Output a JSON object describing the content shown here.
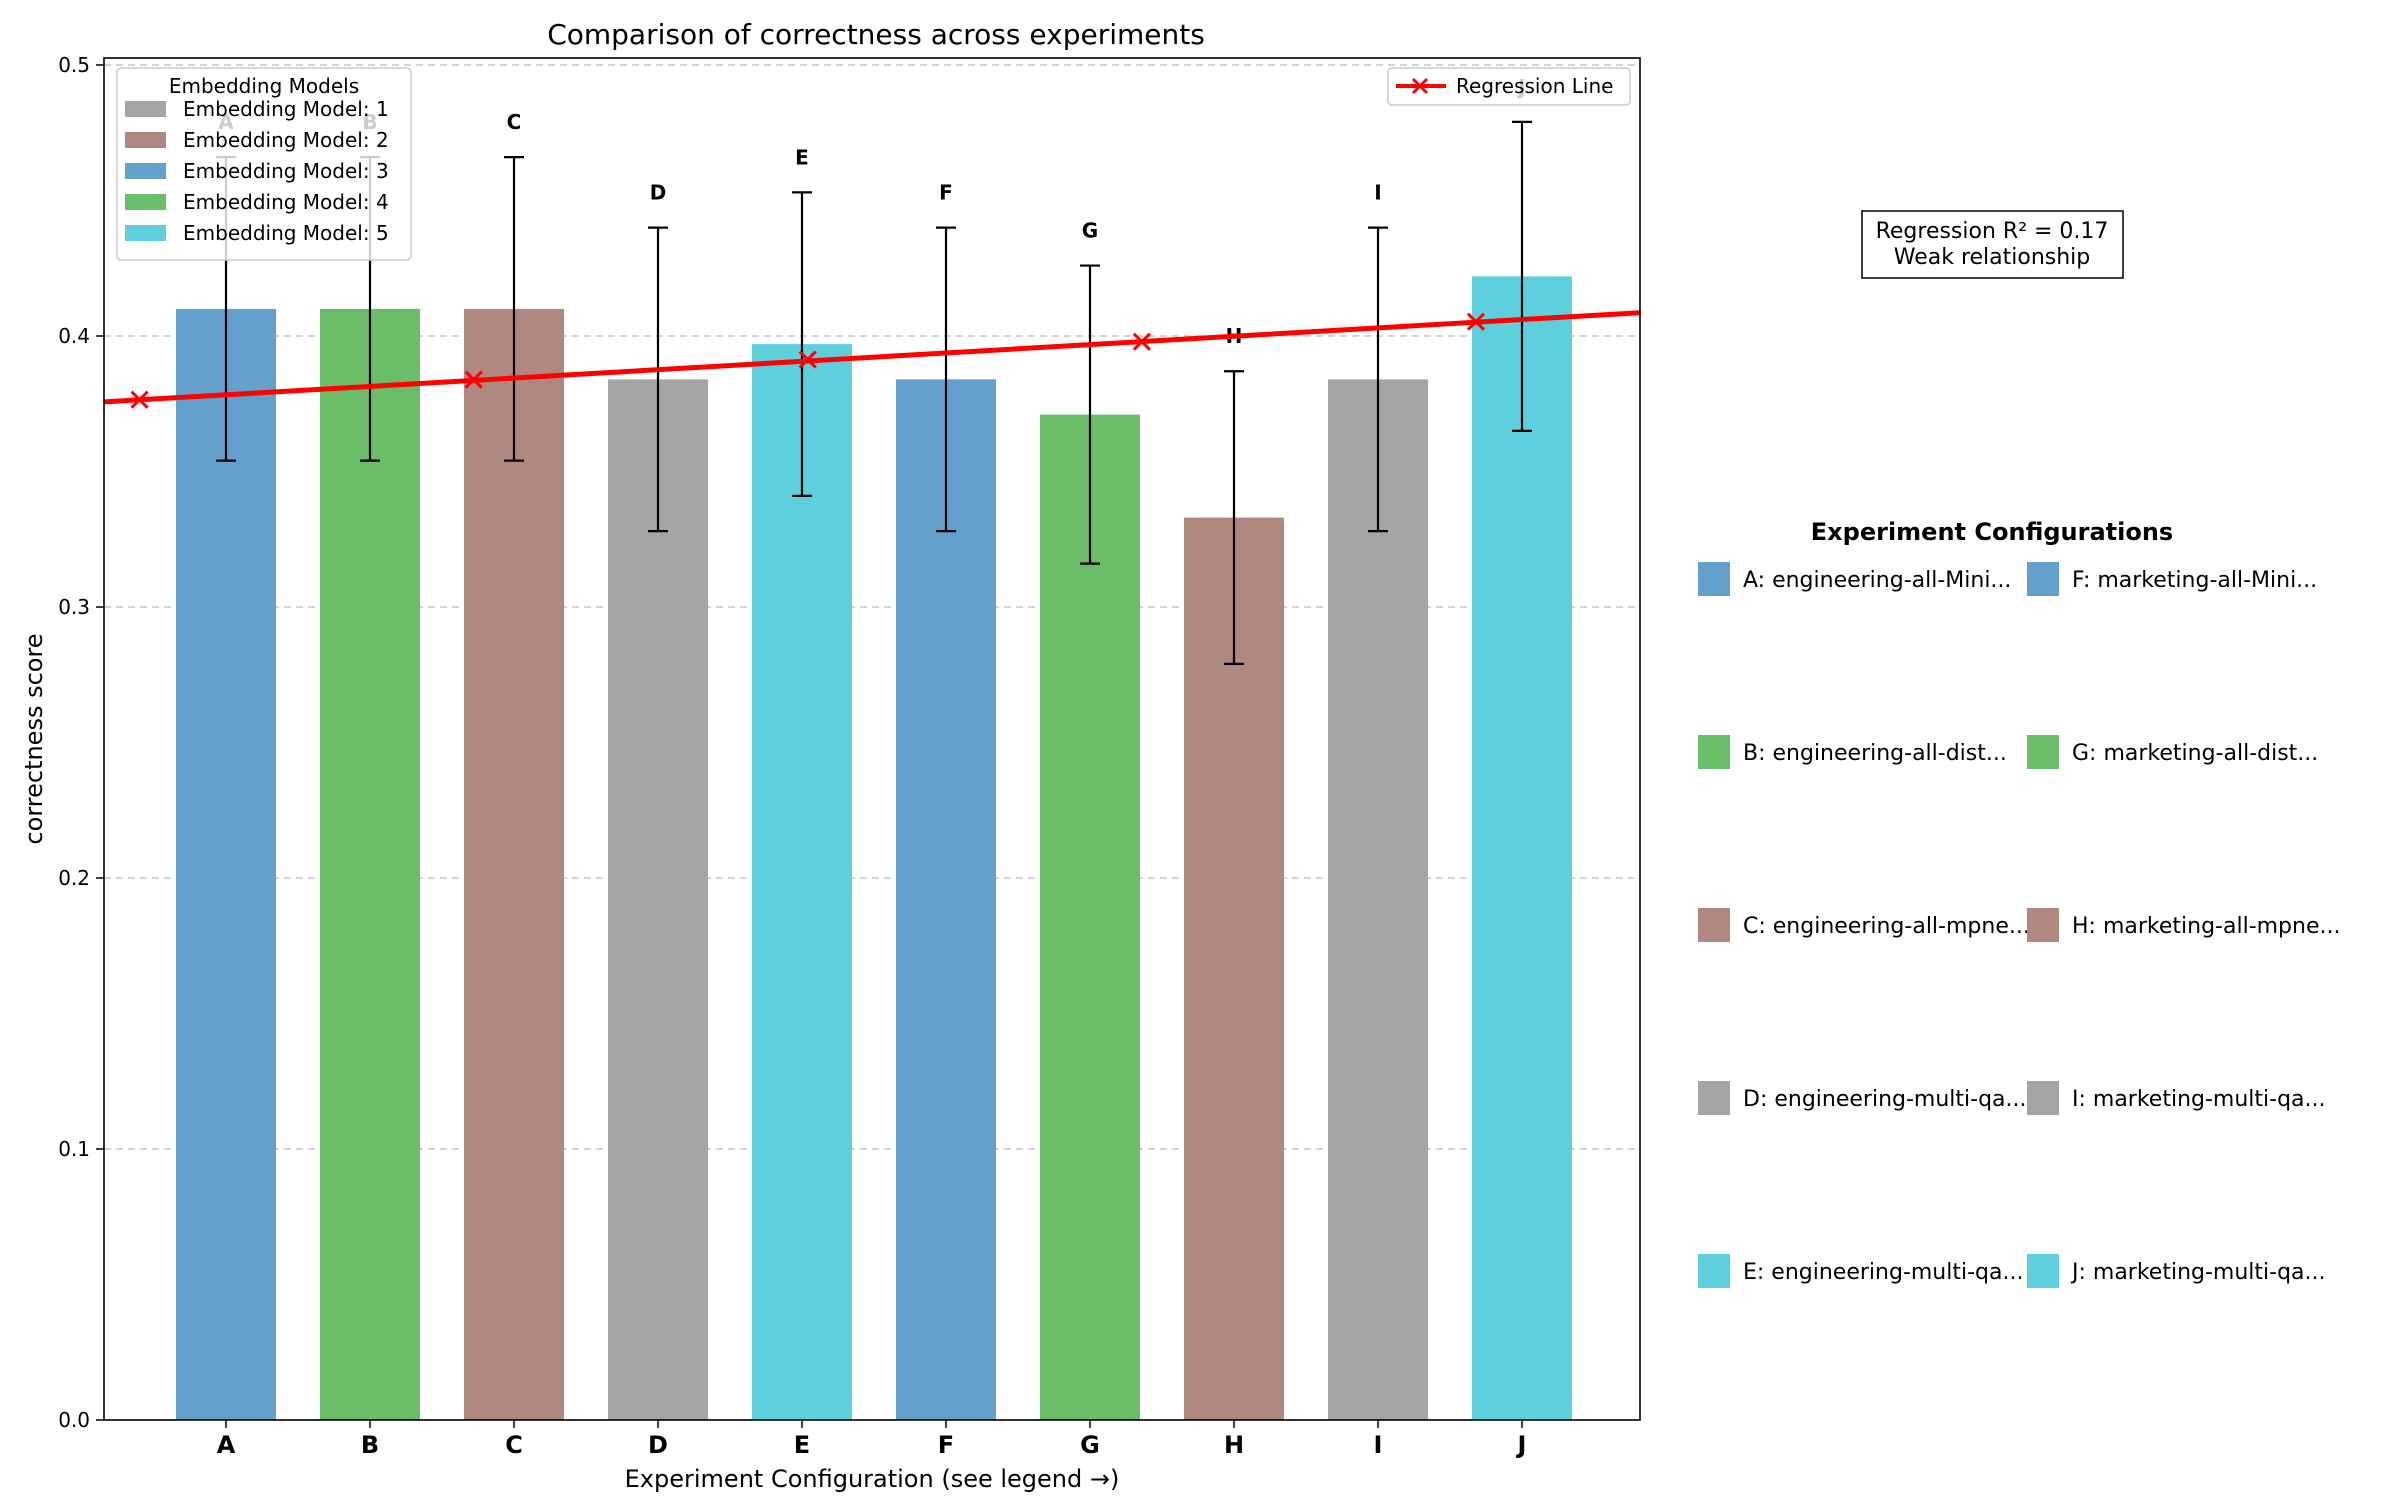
{
  "chart_data": {
    "type": "bar",
    "title": "Comparison of correctness across experiments",
    "xlabel": "Experiment Configuration (see legend →)",
    "ylabel": "correctness score",
    "ylim": [
      0,
      0.5
    ],
    "yticks": [
      "0.0",
      "0.1",
      "0.2",
      "0.3",
      "0.4",
      "0.5"
    ],
    "grid": "horizontal dashed",
    "categories": [
      "A",
      "B",
      "C",
      "D",
      "E",
      "F",
      "G",
      "H",
      "I",
      "J"
    ],
    "values": [
      0.41,
      0.41,
      0.41,
      0.384,
      0.397,
      0.384,
      0.371,
      0.333,
      0.384,
      0.422
    ],
    "errors": [
      0.056,
      0.056,
      0.056,
      0.056,
      0.056,
      0.056,
      0.055,
      0.054,
      0.056,
      0.057
    ],
    "models": [
      3,
      4,
      2,
      1,
      5,
      3,
      4,
      2,
      1,
      5
    ],
    "bar_labels": [
      "A",
      "B",
      "C",
      "D",
      "E",
      "F",
      "G",
      "H",
      "I",
      "J"
    ],
    "regression": {
      "label": "Regression Line",
      "x_start": -0.6,
      "y_start": 0.3757,
      "x_end": 9.85,
      "y_end": 0.4086,
      "marker_x": [
        -0.6,
        1.72,
        4.04,
        6.36,
        8.68
      ],
      "marker_y": [
        0.3765,
        0.3839,
        0.3913,
        0.3979,
        0.4053
      ],
      "color": "#ff0000"
    },
    "annotation": {
      "line1": "Regression R² = 0.17",
      "line2": "Weak relationship"
    },
    "model_legend": {
      "title": "Embedding Models",
      "placement": "upper-left",
      "entries": [
        {
          "label": "Embedding Model: 1",
          "color": "#a5a5a5"
        },
        {
          "label": "Embedding Model: 2",
          "color": "#af8880"
        },
        {
          "label": "Embedding Model: 3",
          "color": "#64a0cc"
        },
        {
          "label": "Embedding Model: 4",
          "color": "#6abe6a"
        },
        {
          "label": "Embedding Model: 5",
          "color": "#5ecfdd"
        }
      ]
    },
    "config_legend": {
      "title": "Experiment Configurations",
      "placement": "right",
      "entries": [
        {
          "label": "A: engineering-all-Mini...",
          "model": 3
        },
        {
          "label": "F: marketing-all-Mini...",
          "model": 3
        },
        {
          "label": "B: engineering-all-dist...",
          "model": 4
        },
        {
          "label": "G: marketing-all-dist...",
          "model": 4
        },
        {
          "label": "C: engineering-all-mpne...",
          "model": 2
        },
        {
          "label": "H: marketing-all-mpne...",
          "model": 2
        },
        {
          "label": "D: engineering-multi-qa...",
          "model": 1
        },
        {
          "label": "I: marketing-multi-qa...",
          "model": 1
        },
        {
          "label": "E: engineering-multi-qa...",
          "model": 5
        },
        {
          "label": "J: marketing-multi-qa...",
          "model": 5
        }
      ]
    }
  }
}
